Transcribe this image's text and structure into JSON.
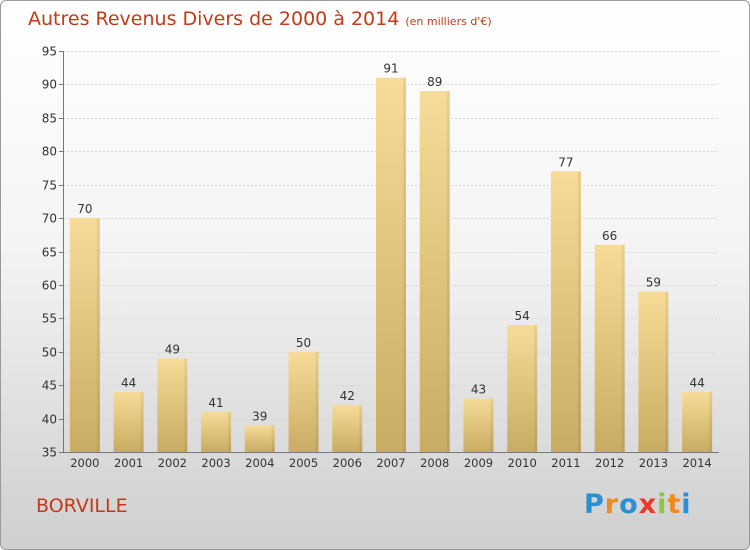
{
  "chart_data": {
    "type": "bar",
    "title": "Autres Revenus Divers de 2000 à 2014",
    "unit": "(en milliers d'€)",
    "categories": [
      "2000",
      "2001",
      "2002",
      "2003",
      "2004",
      "2005",
      "2006",
      "2007",
      "2008",
      "2009",
      "2010",
      "2011",
      "2012",
      "2013",
      "2014"
    ],
    "values": [
      70,
      44,
      49,
      41,
      39,
      50,
      42,
      91,
      89,
      43,
      54,
      77,
      66,
      59,
      44
    ],
    "ylim": [
      35,
      95
    ],
    "yticks": [
      35,
      40,
      45,
      50,
      55,
      60,
      65,
      70,
      75,
      80,
      85,
      90,
      95
    ],
    "grid": true,
    "bar_color": "#e8cc85"
  },
  "place_name": "BORVILLE",
  "logo": {
    "letters": [
      "P",
      "r",
      "o",
      "x",
      "i",
      "t",
      "i"
    ],
    "colors": [
      "#2a8fd4",
      "#f08a1c",
      "#2a8fd4",
      "#e8392a",
      "#8cc63f",
      "#f08a1c",
      "#2a8fd4"
    ]
  }
}
